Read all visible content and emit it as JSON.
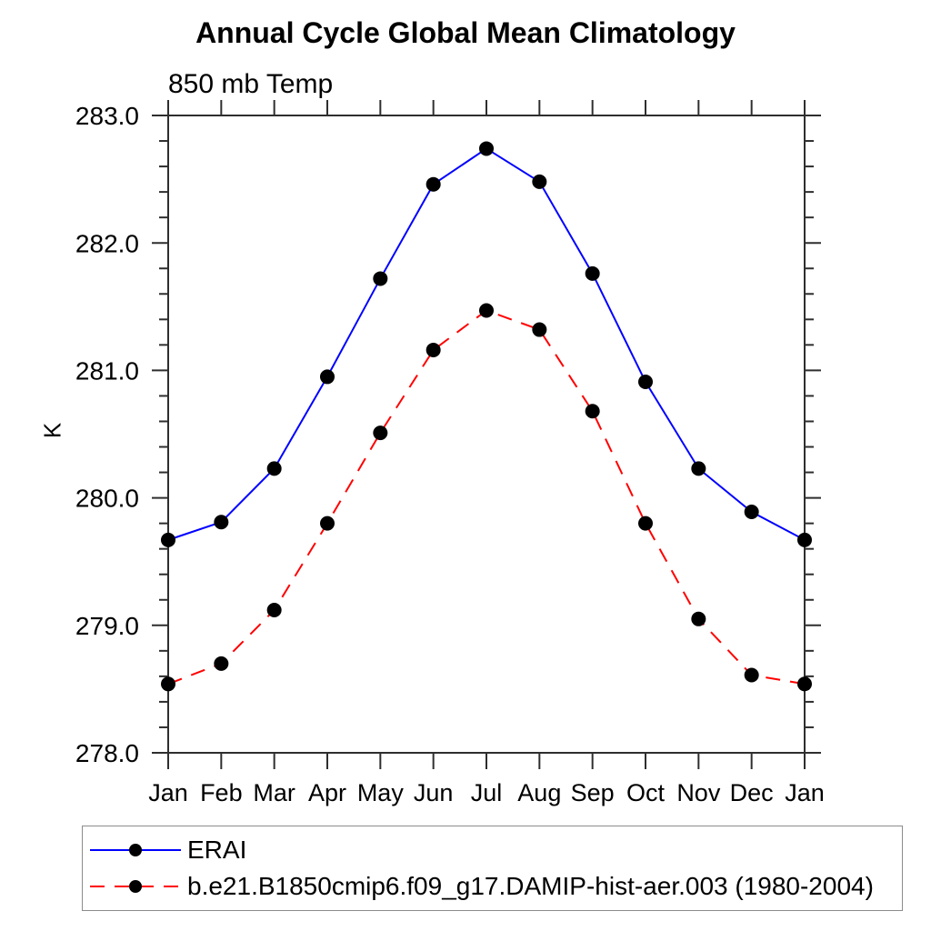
{
  "chart_data": {
    "type": "line",
    "title": "Annual Cycle Global Mean Climatology",
    "subtitle": "850 mb Temp",
    "xlabel": "",
    "ylabel": "K",
    "x_categories": [
      "Jan",
      "Feb",
      "Mar",
      "Apr",
      "May",
      "Jun",
      "Jul",
      "Aug",
      "Sep",
      "Oct",
      "Nov",
      "Dec",
      "Jan"
    ],
    "ylim": [
      278.0,
      283.0
    ],
    "y_major_tick_step": 1.0,
    "y_minor_tick_step": 0.2,
    "y_tick_labels": [
      "278.0",
      "279.0",
      "280.0",
      "281.0",
      "282.0",
      "283.0"
    ],
    "grid": false,
    "legend_position": "bottom-left-outside",
    "frame_color": "#2e2e2e",
    "series": [
      {
        "name": "ERAI",
        "color": "#0000ff",
        "line_style": "solid",
        "marker": "filled-circle",
        "marker_color": "#000000",
        "values": [
          279.67,
          279.81,
          280.23,
          280.95,
          281.72,
          282.46,
          282.74,
          282.48,
          281.76,
          280.91,
          280.23,
          279.89,
          279.67
        ]
      },
      {
        "name": "b.e21.B1850cmip6.f09_g17.DAMIP-hist-aer.003 (1980-2004)",
        "color": "#ff0000",
        "line_style": "dashed",
        "marker": "filled-circle",
        "marker_color": "#000000",
        "values": [
          278.54,
          278.7,
          279.12,
          279.8,
          280.51,
          281.16,
          281.47,
          281.32,
          280.68,
          279.8,
          279.05,
          278.61,
          278.54
        ]
      }
    ]
  }
}
